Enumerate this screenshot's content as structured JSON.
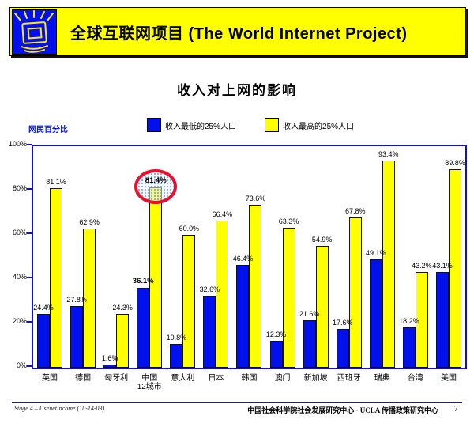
{
  "banner": {
    "title": "全球互联网项目 (The World Internet Project)"
  },
  "page": {
    "title": "收入对上网的影响"
  },
  "axis": {
    "y_title": "网民百分比",
    "y_ticks": [
      "0%",
      "20%",
      "40%",
      "60%",
      "80%",
      "100%"
    ]
  },
  "legend": {
    "low_label": "收入最低的25%人口",
    "high_label": "收入最高的25%人口"
  },
  "colors": {
    "low_bar": "#0011ee",
    "high_bar": "#ffff00",
    "banner_bg": "#ffff00",
    "plot_border": "#1111cc",
    "axis_title": "#0011ee",
    "highlight_ellipse": "#e8112d"
  },
  "chart_data": {
    "type": "bar",
    "title": "收入对上网的影响",
    "ylabel": "网民百分比",
    "ylim": [
      0,
      100
    ],
    "grid": false,
    "legend_position": "top",
    "categories": [
      "英国",
      "德国",
      "匈牙利",
      "中国\n12城市",
      "意大利",
      "日本",
      "韩国",
      "澳门",
      "新加坡",
      "西班牙",
      "瑞典",
      "台湾",
      "美国"
    ],
    "series": [
      {
        "name": "收入最低的25%人口",
        "color": "#0011ee",
        "values": [
          24.4,
          27.8,
          1.6,
          36.1,
          10.8,
          32.6,
          46.4,
          12.3,
          21.6,
          17.6,
          49.1,
          18.2,
          43.1
        ]
      },
      {
        "name": "收入最高的25%人口",
        "color": "#ffff00",
        "values": [
          81.1,
          62.9,
          24.3,
          81.4,
          60.0,
          66.4,
          73.6,
          63.3,
          54.9,
          67.8,
          93.4,
          43.2,
          89.8
        ]
      }
    ],
    "value_label_suffix": "%",
    "highlight_category_index": 3
  },
  "footer": {
    "left": "Stage 4 – UsenetIncome (10-14-03)",
    "right": "中国社会科学院社会发展研究中心 · UCLA 传播政策研究中心",
    "page_number": "7"
  }
}
